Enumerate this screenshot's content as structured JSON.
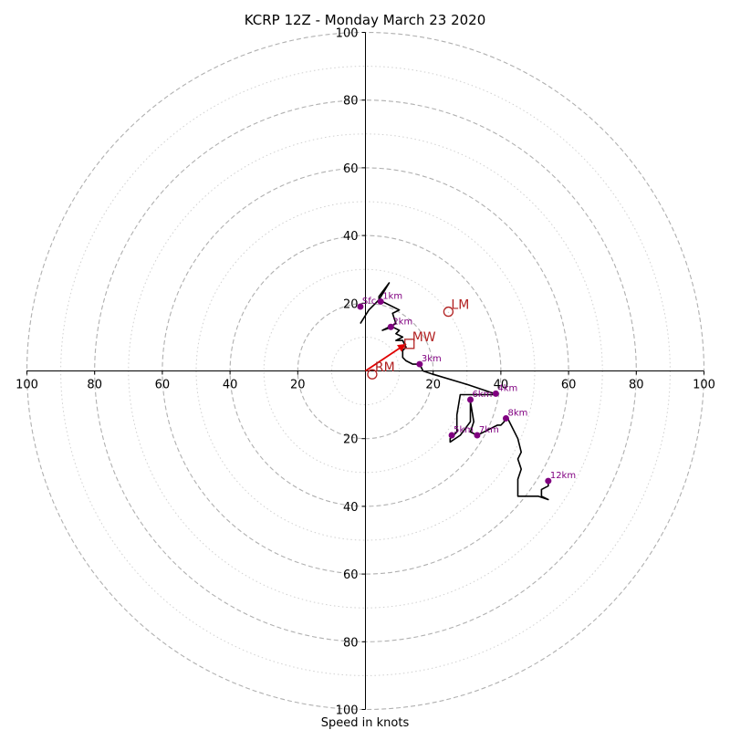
{
  "chart_data": {
    "type": "line",
    "title": "KCRP 12Z - Monday March 23 2020",
    "xlabel": "Speed in knots",
    "ylabel": "",
    "rmax": 100,
    "ring_major": [
      20,
      40,
      60,
      80,
      100
    ],
    "ring_minor": [
      10,
      30,
      50,
      70,
      90
    ],
    "tick_labels": {
      "left": [
        "100",
        "80",
        "60",
        "40",
        "20"
      ],
      "right": [
        "20",
        "40",
        "60",
        "80",
        "100"
      ],
      "top": [
        "100",
        "80",
        "60",
        "40",
        "20"
      ],
      "bottom": [
        "20",
        "40",
        "60",
        "80",
        "100"
      ]
    },
    "tick_values": [
      20,
      40,
      60,
      80,
      100
    ],
    "hodograph_trace": [
      [
        -1.5,
        14
      ],
      [
        1,
        18
      ],
      [
        4,
        21
      ],
      [
        4,
        22
      ],
      [
        7,
        26
      ],
      [
        4,
        21
      ],
      [
        10,
        18
      ],
      [
        8,
        17
      ],
      [
        9,
        14
      ],
      [
        5,
        12
      ],
      [
        8,
        13
      ],
      [
        10,
        12
      ],
      [
        9,
        11
      ],
      [
        11,
        10
      ],
      [
        9,
        9
      ],
      [
        11,
        9
      ],
      [
        12,
        7
      ],
      [
        11,
        6
      ],
      [
        11,
        5
      ],
      [
        11,
        4
      ],
      [
        12,
        3
      ],
      [
        14,
        2
      ],
      [
        16,
        2
      ],
      [
        17,
        0
      ],
      [
        20,
        -1
      ],
      [
        30,
        -4
      ],
      [
        39,
        -7
      ],
      [
        37,
        -7
      ],
      [
        31,
        -7
      ],
      [
        28,
        -7
      ],
      [
        27,
        -13
      ],
      [
        27,
        -18
      ],
      [
        25,
        -20
      ],
      [
        25,
        -21
      ],
      [
        28,
        -19
      ],
      [
        31,
        -15
      ],
      [
        31,
        -11
      ],
      [
        31,
        -9
      ],
      [
        32,
        -15
      ],
      [
        31,
        -18
      ],
      [
        33,
        -19
      ],
      [
        35,
        -18
      ],
      [
        39,
        -16
      ],
      [
        40,
        -16
      ],
      [
        41,
        -15
      ],
      [
        41,
        -14
      ],
      [
        42,
        -14
      ],
      [
        45,
        -20
      ],
      [
        46,
        -24
      ],
      [
        45,
        -26
      ],
      [
        46,
        -29
      ],
      [
        45,
        -32
      ],
      [
        45,
        -35
      ],
      [
        45,
        -37
      ],
      [
        48,
        -37
      ],
      [
        51,
        -37
      ],
      [
        54,
        -38
      ],
      [
        52,
        -37
      ],
      [
        52,
        -35
      ],
      [
        54,
        -34
      ],
      [
        54,
        -32.5
      ]
    ],
    "height_markers": [
      {
        "label": "Sfc",
        "u": -1.5,
        "v": 19
      },
      {
        "label": "1km",
        "u": 4.5,
        "v": 20.5
      },
      {
        "label": "2km",
        "u": 7.5,
        "v": 13
      },
      {
        "label": "3km",
        "u": 16,
        "v": 2
      },
      {
        "label": "4km",
        "u": 38.5,
        "v": -6.7
      },
      {
        "label": "5km",
        "u": 25.5,
        "v": -19
      },
      {
        "label": "6km",
        "u": 31,
        "v": -8.5
      },
      {
        "label": "7km",
        "u": 33,
        "v": -19
      },
      {
        "label": "8km",
        "u": 41.5,
        "v": -14
      },
      {
        "label": "12km",
        "u": 54,
        "v": -32.5
      }
    ],
    "storm_motion": [
      {
        "label": "RM",
        "u": 2,
        "v": -1,
        "marker": "circle"
      },
      {
        "label": "LM",
        "u": 24.5,
        "v": 17.5,
        "marker": "circle"
      },
      {
        "label": "MW",
        "u": 13,
        "v": 8,
        "marker": "square"
      }
    ],
    "shear_vector": {
      "from": [
        0,
        0
      ],
      "to": [
        12,
        8
      ]
    },
    "colors": {
      "trace": "#000000",
      "marker": "#800080",
      "storm": "#b22222",
      "vector": "#e00000",
      "grid": "#b0b0b0",
      "grid_minor": "#d0d0d0"
    }
  }
}
